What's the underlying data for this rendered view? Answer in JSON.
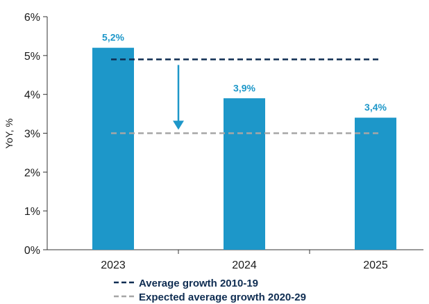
{
  "chart_data": {
    "type": "bar",
    "categories": [
      "2023",
      "2024",
      "2025"
    ],
    "values": [
      5.2,
      3.9,
      3.4
    ],
    "data_labels": [
      "5,2%",
      "3,9%",
      "3,4%"
    ],
    "ylabel": "YoY, %",
    "ylim": [
      0,
      6
    ],
    "yticks": [
      0,
      1,
      2,
      3,
      4,
      5,
      6
    ],
    "ytick_labels": [
      "0%",
      "1%",
      "2%",
      "3%",
      "4%",
      "5%",
      "6%"
    ],
    "grid": false,
    "reference_lines": [
      {
        "name": "Average growth 2010-19",
        "value": 4.9,
        "color": "#0f2d52",
        "style": "dashed"
      },
      {
        "name": "Expected average growth 2020-29",
        "value": 3.0,
        "color": "#a6a6a6",
        "style": "dashed"
      }
    ],
    "annotation": {
      "type": "arrow",
      "from": 4.9,
      "to": 3.0,
      "color": "#1d97c9"
    },
    "bar_color": "#1d97c9",
    "legend_placement": "bottom"
  }
}
